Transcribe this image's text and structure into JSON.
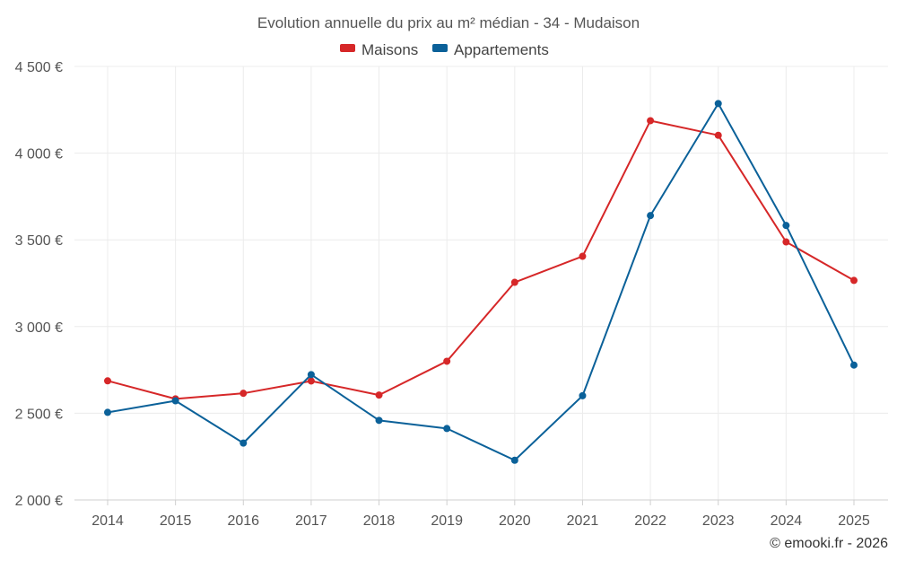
{
  "chart_data": {
    "type": "line",
    "title": "Evolution annuelle du prix au m² médian - 34 - Mudaison",
    "categories": [
      "2014",
      "2015",
      "2016",
      "2017",
      "2018",
      "2019",
      "2020",
      "2021",
      "2022",
      "2023",
      "2024",
      "2025"
    ],
    "series": [
      {
        "name": "Maisons",
        "color": "#d62728",
        "values": [
          2687,
          2583,
          2615,
          2686,
          2605,
          2800,
          3255,
          3405,
          4187,
          4103,
          3488,
          3266
        ]
      },
      {
        "name": "Appartements",
        "color": "#0b6199",
        "values": [
          2505,
          2572,
          2328,
          2723,
          2459,
          2412,
          2229,
          2601,
          3640,
          4286,
          3583,
          2778
        ]
      }
    ],
    "ylim": [
      2000,
      4500
    ],
    "y_ticks": [
      2000,
      2500,
      3000,
      3500,
      4000,
      4500
    ],
    "y_tick_labels": [
      "2 000 €",
      "2 500 €",
      "3 000 €",
      "3 500 €",
      "4 000 €",
      "4 500 €"
    ],
    "xlabel": "",
    "ylabel": "",
    "legend_position": "top-center",
    "grid": true,
    "credit": "© emooki.fr - 2026"
  }
}
